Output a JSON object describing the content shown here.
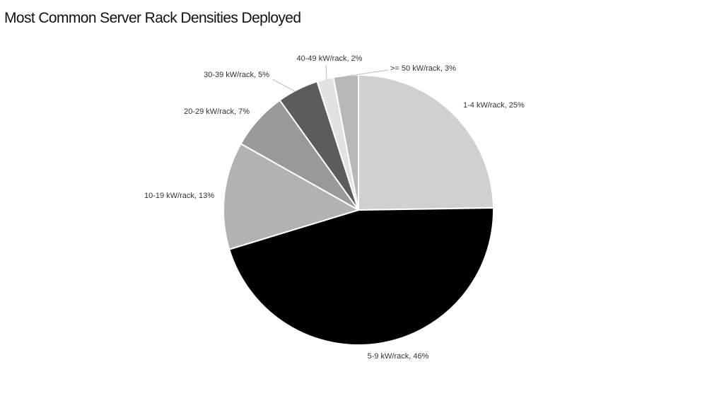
{
  "chart_data": {
    "type": "pie",
    "title": "Most Common Server Rack Densities Deployed",
    "slices": [
      {
        "label": "1-4 kW/rack, 25%",
        "category": "1-4 kW/rack",
        "value": 25,
        "color": "#d0d0d0"
      },
      {
        "label": "5-9 kW/rack, 46%",
        "category": "5-9 kW/rack",
        "value": 46,
        "color": "#000000"
      },
      {
        "label": "10-19 kW/rack, 13%",
        "category": "10-19 kW/rack",
        "value": 13,
        "color": "#b2b2b2"
      },
      {
        "label": "20-29 kW/rack, 7%",
        "category": "20-29 kW/rack",
        "value": 7,
        "color": "#999999"
      },
      {
        "label": "30-39 kW/rack, 5%",
        "category": "30-39 kW/rack",
        "value": 5,
        "color": "#5c5c5c"
      },
      {
        "label": "40-49 kW/rack, 2%",
        "category": "40-49 kW/rack",
        "value": 2,
        "color": "#e2e2e2"
      },
      {
        "label": ">= 50 kW/rack, 3%",
        "category": ">= 50 kW/rack",
        "value": 3,
        "color": "#b8b8b8"
      }
    ],
    "legend": "none"
  }
}
